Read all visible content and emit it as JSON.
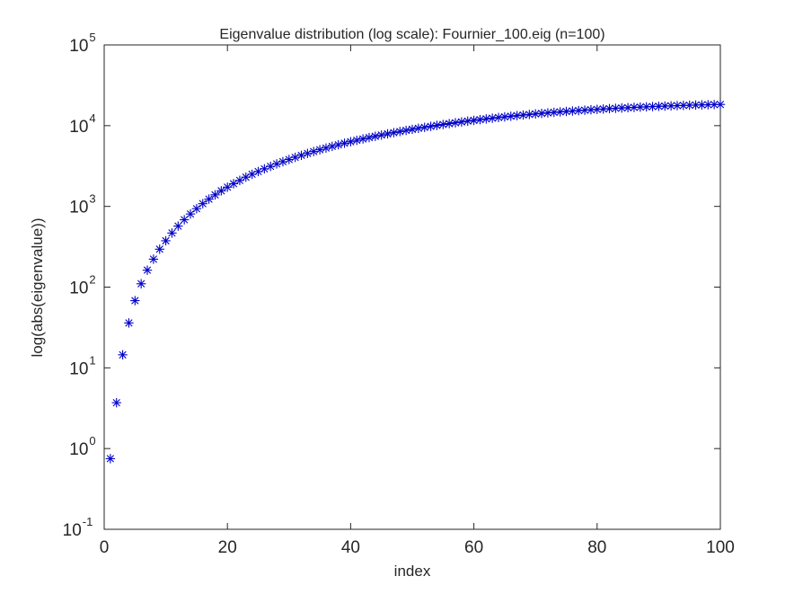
{
  "chart_data": {
    "type": "scatter",
    "title": "Eigenvalue distribution (log scale): Fournier_100.eig (n=100)",
    "xlabel": "index",
    "ylabel": "log(abs(eigenvalue))",
    "xlim": [
      0,
      100
    ],
    "ylim": [
      0.1,
      100000
    ],
    "yscale": "log",
    "grid": false,
    "marker": "asterisk",
    "marker_color": "#0000c8",
    "x_ticks": [
      {
        "value": 0,
        "label": "0"
      },
      {
        "value": 20,
        "label": "20"
      },
      {
        "value": 40,
        "label": "40"
      },
      {
        "value": 60,
        "label": "60"
      },
      {
        "value": 80,
        "label": "80"
      },
      {
        "value": 100,
        "label": "100"
      }
    ],
    "y_ticks": [
      {
        "value": 0.1,
        "base": "10",
        "exp": "-1"
      },
      {
        "value": 1,
        "base": "10",
        "exp": "0"
      },
      {
        "value": 10,
        "base": "10",
        "exp": "1"
      },
      {
        "value": 100,
        "base": "10",
        "exp": "2"
      },
      {
        "value": 1000,
        "base": "10",
        "exp": "3"
      },
      {
        "value": 10000,
        "base": "10",
        "exp": "4"
      },
      {
        "value": 100000,
        "base": "10",
        "exp": "5"
      }
    ],
    "x": [
      1,
      2,
      3,
      4,
      5,
      6,
      7,
      8,
      9,
      10,
      11,
      12,
      13,
      14,
      15,
      16,
      17,
      18,
      19,
      20,
      21,
      22,
      23,
      24,
      25,
      26,
      27,
      28,
      29,
      30,
      31,
      32,
      33,
      34,
      35,
      36,
      37,
      38,
      39,
      40,
      41,
      42,
      43,
      44,
      45,
      46,
      47,
      48,
      49,
      50,
      51,
      52,
      53,
      54,
      55,
      56,
      57,
      58,
      59,
      60,
      61,
      62,
      63,
      64,
      65,
      66,
      67,
      68,
      69,
      70,
      71,
      72,
      73,
      74,
      75,
      76,
      77,
      78,
      79,
      80,
      81,
      82,
      83,
      84,
      85,
      86,
      87,
      88,
      89,
      90,
      91,
      92,
      93,
      94,
      95,
      96,
      97,
      98,
      99,
      100
    ],
    "y": [
      0.75,
      3.7,
      14.5,
      36,
      68,
      110,
      162,
      222,
      295,
      375,
      468,
      570,
      683,
      805,
      936,
      1080,
      1230,
      1390,
      1560,
      1730,
      1910,
      2100,
      2300,
      2500,
      2700,
      2920,
      3130,
      3360,
      3580,
      3810,
      4050,
      4290,
      4530,
      4780,
      5030,
      5280,
      5540,
      5800,
      6060,
      6320,
      6580,
      6850,
      7120,
      7380,
      7650,
      7920,
      8190,
      8460,
      8730,
      9000,
      9270,
      9530,
      9800,
      10070,
      10340,
      10600,
      10860,
      11120,
      11380,
      11630,
      11880,
      12130,
      12370,
      12610,
      12850,
      13080,
      13310,
      13540,
      13760,
      13980,
      14190,
      14400,
      14610,
      14810,
      15000,
      15190,
      15380,
      15560,
      15740,
      15910,
      16080,
      16240,
      16400,
      16550,
      16700,
      16840,
      16980,
      17110,
      17240,
      17360,
      17480,
      17600,
      17710,
      17810,
      17910,
      18000,
      18090,
      18170,
      18250,
      18320
    ]
  }
}
